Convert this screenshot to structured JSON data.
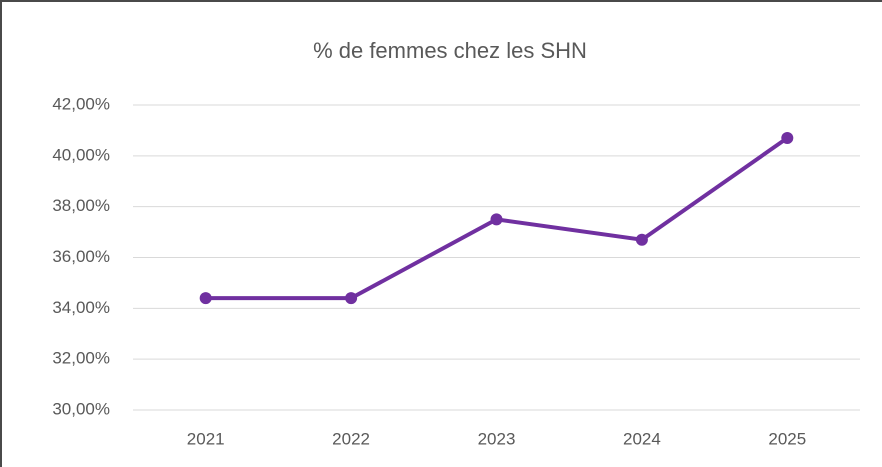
{
  "chart_data": {
    "type": "line",
    "title": "% de femmes chez les SHN",
    "categories": [
      "2021",
      "2022",
      "2023",
      "2024",
      "2025"
    ],
    "series": [
      {
        "name": "% de femmes chez les SHN",
        "color": "#7030a0",
        "values": [
          34.4,
          34.4,
          37.5,
          36.7,
          40.7
        ]
      }
    ],
    "ylim": [
      30,
      42
    ],
    "yticks": [
      {
        "value": 30,
        "label": "30,00%"
      },
      {
        "value": 32,
        "label": "32,00%"
      },
      {
        "value": 34,
        "label": "34,00%"
      },
      {
        "value": 36,
        "label": "36,00%"
      },
      {
        "value": 38,
        "label": "38,00%"
      },
      {
        "value": 40,
        "label": "40,00%"
      },
      {
        "value": 42,
        "label": "42,00%"
      }
    ],
    "grid": true
  }
}
